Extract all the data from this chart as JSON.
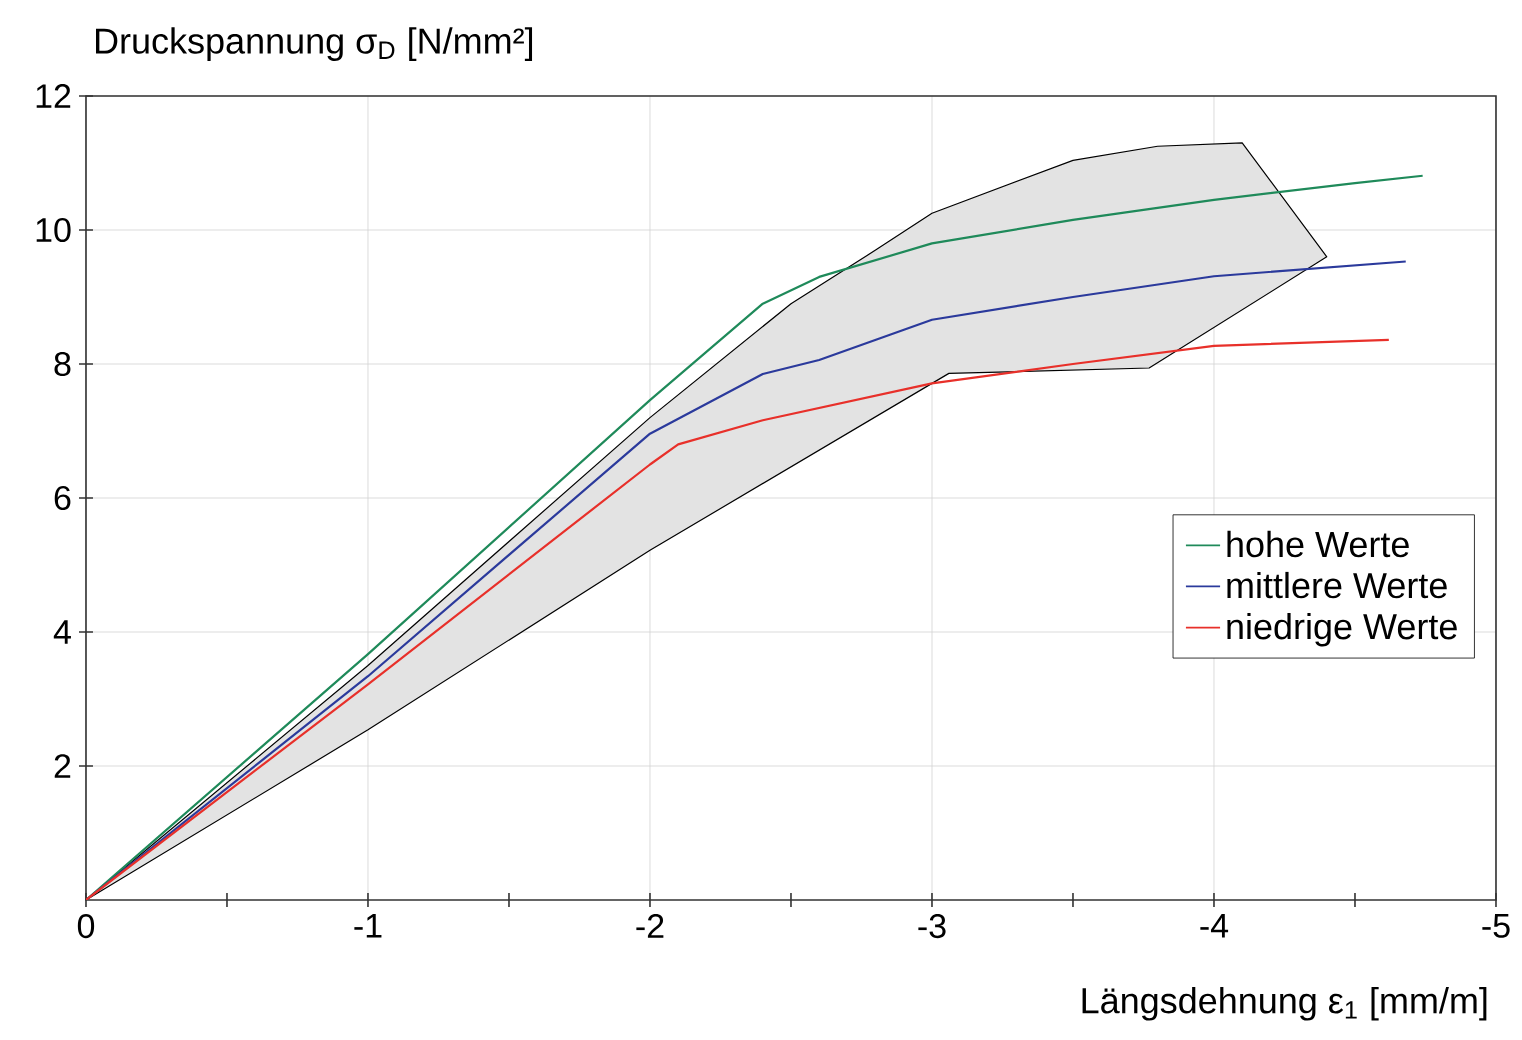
{
  "chart_data": {
    "type": "line",
    "xlabel": "Längsdehnung  ε$_{1}$ [mm/m]",
    "ylabel": "Druckspannung σ$_{D}$ [N/mm²]",
    "xlim": [
      0,
      -5
    ],
    "ylim": [
      0,
      12
    ],
    "xticks": [
      0,
      {
        "value": -0.5,
        "label": null
      },
      -1,
      {
        "value": -1.5,
        "label": null
      },
      -2,
      {
        "value": -2.5,
        "label": null
      },
      -3,
      {
        "value": -3.5,
        "label": null
      },
      -4,
      {
        "value": -4.5,
        "label": null
      },
      -5
    ],
    "yticks": [
      2,
      4,
      6,
      8,
      10,
      12
    ],
    "grid": true,
    "legend": "right",
    "series": [
      {
        "type": "area",
        "color": "#e3e3e3",
        "x": [
          0,
          -1,
          -2,
          -2.5,
          -2.8,
          -3,
          -3.5,
          -3.8,
          -4.1,
          -4.4,
          -3.77,
          -3.06,
          -2,
          -1,
          0
        ],
        "values": [
          0,
          3.5,
          7.2,
          8.9,
          9.7,
          10.25,
          11.04,
          11.25,
          11.3,
          9.6,
          7.94,
          7.86,
          5.22,
          2.54,
          0
        ]
      },
      {
        "name": "hohe Werte",
        "color": "#1f8a5a",
        "x": [
          0,
          -1,
          -2,
          -2.4,
          -2.6,
          -3,
          -3.5,
          -4,
          -4.5,
          -4.74
        ],
        "values": [
          0,
          3.67,
          7.46,
          8.9,
          9.3,
          9.8,
          10.15,
          10.45,
          10.7,
          10.81
        ]
      },
      {
        "name": "mittlere Werte",
        "color": "#2b3a9c",
        "x": [
          0,
          -1,
          -2,
          -2.4,
          -2.6,
          -3,
          -3.5,
          -4,
          -4.68
        ],
        "values": [
          0,
          3.34,
          6.96,
          7.85,
          8.06,
          8.66,
          9.0,
          9.31,
          9.53
        ]
      },
      {
        "name": "niedrige Werte",
        "color": "#e8302a",
        "x": [
          0,
          -1,
          -2,
          -2.1,
          -2.4,
          -3,
          -3.5,
          -4,
          -4.62
        ],
        "values": [
          0,
          3.22,
          6.5,
          6.8,
          7.16,
          7.71,
          8.0,
          8.27,
          8.36
        ]
      }
    ]
  }
}
